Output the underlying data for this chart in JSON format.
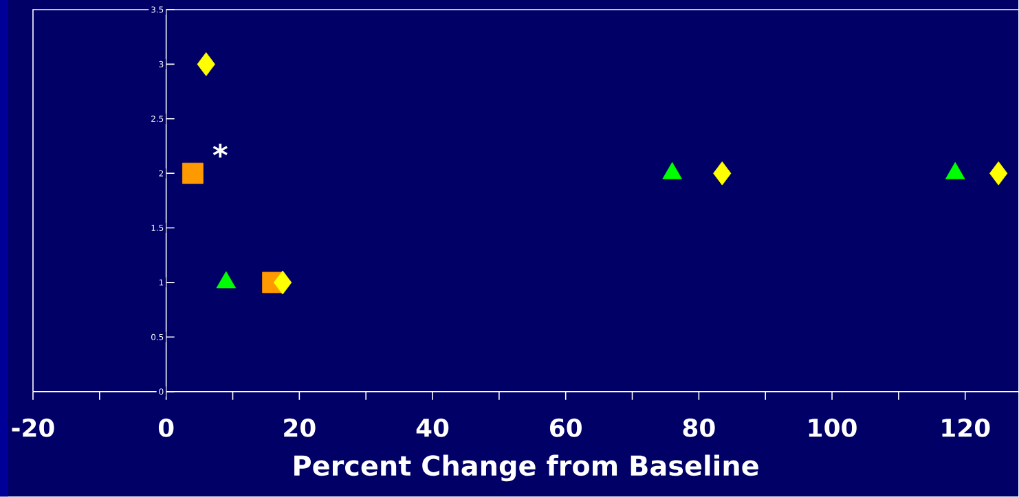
{
  "chart_data": {
    "type": "scatter",
    "xlabel": "Percent Change from Baseline",
    "xlim": [
      -20,
      128
    ],
    "ylim": [
      0,
      3.5
    ],
    "xticks": [
      -20,
      0,
      20,
      40,
      60,
      80,
      100,
      120
    ],
    "yticks": [
      0,
      0.5,
      1,
      1.5,
      2,
      2.5,
      3,
      3.5
    ],
    "series": [
      {
        "color": "#ff9900",
        "marker": "square",
        "x": [
          4,
          16
        ],
        "values": [
          2,
          1
        ]
      },
      {
        "color": "#00ff00",
        "marker": "triangle",
        "x": [
          9,
          76,
          118.5
        ],
        "values": [
          1,
          2,
          2
        ]
      },
      {
        "color": "#ffff00",
        "marker": "diamond",
        "x": [
          6,
          17.5,
          83.5,
          125
        ],
        "values": [
          3,
          1,
          2,
          2
        ]
      }
    ],
    "annotations": [
      "*"
    ],
    "grid": false
  }
}
